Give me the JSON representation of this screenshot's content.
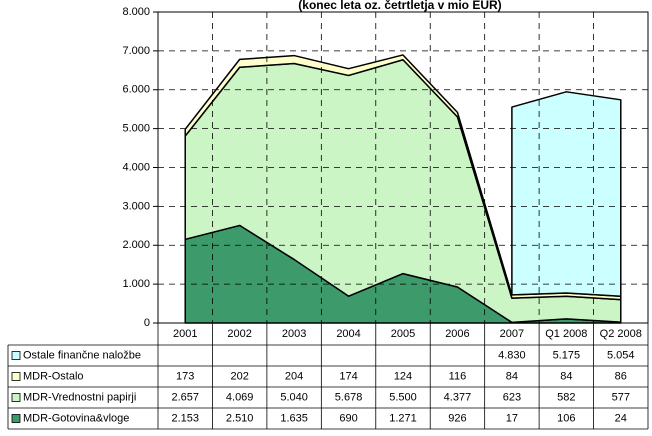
{
  "chart_data": {
    "type": "area",
    "title": "(konec leta oz. četrtletja v mio EUR)",
    "categories": [
      "2001",
      "2002",
      "2003",
      "2004",
      "2005",
      "2006",
      "2007",
      "Q1 2008",
      "Q2 2008"
    ],
    "series": [
      {
        "name": "MDR-Gotovina&vloge",
        "color": "#3d9b6b",
        "values": [
          2153,
          2510,
          1635,
          690,
          1271,
          926,
          17,
          106,
          24
        ],
        "value_labels": [
          "2.153",
          "2.510",
          "1.635",
          "690",
          "1.271",
          "926",
          "17",
          "106",
          "24"
        ]
      },
      {
        "name": "MDR-Vrednostni papirji",
        "color": "#ccf5c6",
        "values": [
          2657,
          4069,
          5040,
          5678,
          5500,
          4377,
          623,
          582,
          577
        ],
        "value_labels": [
          "2.657",
          "4.069",
          "5.040",
          "5.678",
          "5.500",
          "4.377",
          "623",
          "582",
          "577"
        ]
      },
      {
        "name": "MDR-Ostalo",
        "color": "#ffffcc",
        "values": [
          173,
          202,
          204,
          174,
          124,
          116,
          84,
          84,
          86
        ],
        "value_labels": [
          "173",
          "202",
          "204",
          "174",
          "124",
          "116",
          "84",
          "84",
          "86"
        ]
      },
      {
        "name": "Ostale finančne naložbe",
        "color": "#ccffff",
        "values": [
          null,
          null,
          null,
          null,
          null,
          null,
          4830,
          5175,
          5054
        ],
        "value_labels": [
          null,
          null,
          null,
          null,
          null,
          null,
          "4.830",
          "5.175",
          "5.054"
        ]
      }
    ],
    "ylim": [
      0,
      8000
    ],
    "yticks": [
      0,
      {
        "value": 1000,
        "label": "1.000"
      },
      {
        "value": 2000,
        "label": "2.000"
      },
      {
        "value": 3000,
        "label": "3.000"
      },
      {
        "value": 4000,
        "label": "4.000"
      },
      {
        "value": 5000,
        "label": "5.000"
      },
      {
        "value": 6000,
        "label": "6.000"
      },
      {
        "value": 7000,
        "label": "7.000"
      },
      {
        "value": 8000,
        "label": "8.000"
      }
    ],
    "grid": true
  }
}
